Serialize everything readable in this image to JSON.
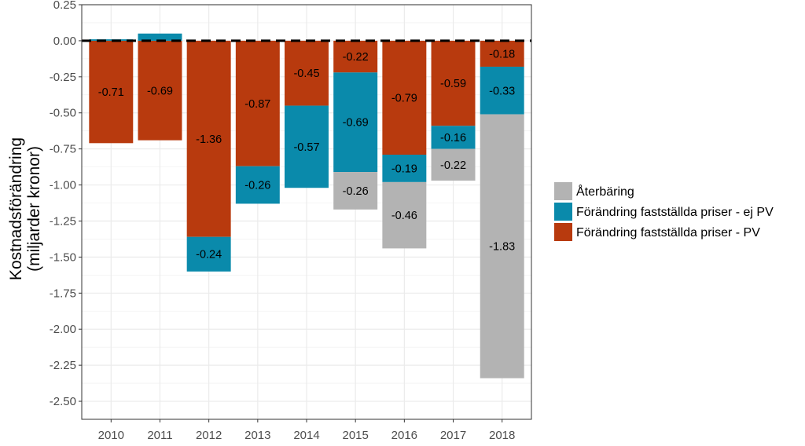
{
  "chart_data": {
    "type": "bar",
    "stacked": true,
    "categories": [
      "2010",
      "2011",
      "2012",
      "2013",
      "2014",
      "2015",
      "2016",
      "2017",
      "2018"
    ],
    "series": [
      {
        "name": "Förändring fastställda priser - PV",
        "color": "#B83A0E",
        "values": [
          -0.71,
          -0.69,
          -1.36,
          -0.87,
          -0.45,
          -0.22,
          -0.79,
          -0.59,
          -0.18
        ],
        "labels": [
          "-0.71",
          "-0.69",
          "-1.36",
          "-0.87",
          "-0.45",
          "-0.22",
          "-0.79",
          "-0.59",
          "-0.18"
        ]
      },
      {
        "name": "Förändring fastställda priser - ej PV",
        "color": "#0A8AAB",
        "values": [
          0.01,
          0.05,
          -0.24,
          -0.26,
          -0.57,
          -0.69,
          -0.19,
          -0.16,
          -0.33
        ],
        "labels": [
          "",
          "",
          "-0.24",
          "-0.26",
          "-0.57",
          "-0.69",
          "-0.19",
          "-0.16",
          "-0.33"
        ]
      },
      {
        "name": "Återbäring",
        "color": "#B3B3B3",
        "values": [
          0,
          0,
          0,
          0,
          0,
          -0.26,
          -0.46,
          -0.22,
          -1.83
        ],
        "labels": [
          "",
          "",
          "",
          "",
          "",
          "-0.26",
          "-0.46",
          "-0.22",
          "-1.83"
        ]
      }
    ],
    "ylabel_line1": "Kostnadsförändring",
    "ylabel_line2": "(miljarder kronor)",
    "xlabel": "",
    "ylim": [
      -2.625,
      0.25
    ],
    "yticks": [
      0.25,
      0.0,
      -0.25,
      -0.5,
      -0.75,
      -1.0,
      -1.25,
      -1.5,
      -1.75,
      -2.0,
      -2.25,
      -2.5
    ],
    "ytick_labels": [
      "0.25",
      "0.00",
      "-0.25",
      "-0.50",
      "-0.75",
      "-1.00",
      "-1.25",
      "-1.50",
      "-1.75",
      "-2.00",
      "-2.25",
      "-2.50"
    ],
    "reference_line": 0,
    "grid": true,
    "legend_order": [
      "Återbäring",
      "Förändring fastställda priser - ej PV",
      "Förändring fastställda priser - PV"
    ],
    "legend_position": "right"
  }
}
